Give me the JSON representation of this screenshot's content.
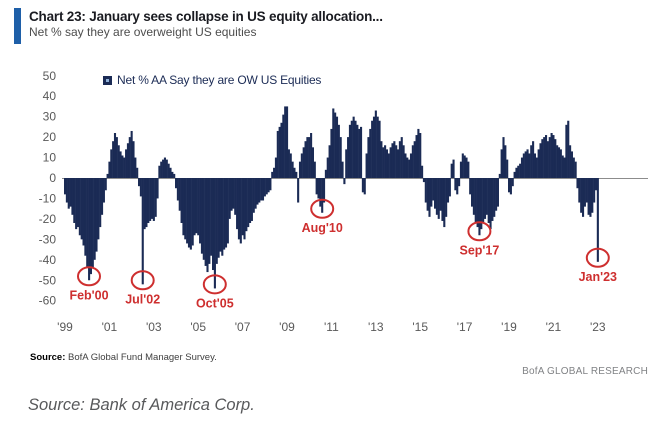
{
  "header": {
    "title": "Chart 23: January sees collapse in US equity allocation...",
    "subtitle": "Net % say they are overweight US equities"
  },
  "legend": {
    "label": "Net % AA Say they are OW US Equities"
  },
  "footer": {
    "source_label": "Source:",
    "source_text": " BofA Global Fund Manager Survey.",
    "brand": "BofA GLOBAL RESEARCH"
  },
  "caption": "Source: Bank of America Corp.",
  "colors": {
    "bar": "#1B2B55",
    "accent": "#1E5FA8",
    "axis_text": "#595959",
    "zero_line": "#8C8C8C",
    "annotation": "#CE2F2F"
  },
  "chart_data": {
    "type": "bar",
    "title": "Net % AA Say they are OW US Equities",
    "frequency": "monthly",
    "start_year": 1999,
    "end_label": "Jan'23",
    "ylim": [
      -60,
      50
    ],
    "grid": false,
    "yticks": [
      50,
      40,
      30,
      20,
      10,
      0,
      -10,
      -20,
      -30,
      -40,
      -50,
      -60
    ],
    "xtick_labels": [
      "'99",
      "'01",
      "'03",
      "'05",
      "'07",
      "'09",
      "'11",
      "'13",
      "'15",
      "'17",
      "'19",
      "'21",
      "'23"
    ],
    "values": [
      -8,
      -12,
      -15,
      -14,
      -18,
      -22,
      -25,
      -24,
      -28,
      -30,
      -33,
      -38,
      -44,
      -50,
      -47,
      -44,
      -40,
      -36,
      -30,
      -24,
      -18,
      -12,
      -6,
      2,
      8,
      14,
      18,
      22,
      20,
      16,
      13,
      11,
      10,
      14,
      17,
      20,
      23,
      18,
      10,
      5,
      -4,
      -9,
      -52,
      -25,
      -24,
      -22,
      -21,
      -20,
      -21,
      -19,
      -10,
      6,
      8,
      9,
      10,
      9,
      7,
      5,
      3,
      2,
      -5,
      -11,
      -16,
      -22,
      -28,
      -30,
      -32,
      -34,
      -35,
      -33,
      -28,
      -27,
      -28,
      -32,
      -37,
      -40,
      -43,
      -46,
      -42,
      -38,
      -45,
      -54,
      -42,
      -39,
      -36,
      -38,
      -35,
      -34,
      -32,
      -20,
      -16,
      -15,
      -18,
      -25,
      -30,
      -32,
      -28,
      -30,
      -26,
      -24,
      -22,
      -21,
      -17,
      -15,
      -13,
      -12,
      -11,
      -11,
      -9,
      -8,
      -7,
      -6,
      3,
      5,
      10,
      23,
      25,
      27,
      31,
      35,
      35,
      14,
      12,
      8,
      5,
      3,
      -12,
      8,
      12,
      15,
      18,
      20,
      20,
      22,
      15,
      8,
      -8,
      -10,
      -14,
      -17,
      -12,
      4,
      10,
      16,
      24,
      34,
      32,
      30,
      26,
      20,
      8,
      -3,
      14,
      20,
      26,
      28,
      30,
      28,
      26,
      24,
      25,
      -7,
      -8,
      12,
      20,
      24,
      28,
      30,
      33,
      30,
      28,
      18,
      15,
      16,
      14,
      12,
      15,
      17,
      18,
      16,
      14,
      18,
      20,
      16,
      12,
      10,
      9,
      12,
      16,
      18,
      21,
      24,
      22,
      6,
      -2,
      -12,
      -16,
      -19,
      -14,
      -11,
      -15,
      -18,
      -20,
      -16,
      -21,
      -24,
      -19,
      -12,
      -9,
      7,
      9,
      -6,
      -8,
      -4,
      8,
      12,
      11,
      10,
      8,
      -8,
      -14,
      -18,
      -22,
      -24,
      -28,
      -25,
      -22,
      -20,
      -18,
      -22,
      -25,
      -21,
      -19,
      -16,
      -14,
      2,
      14,
      20,
      16,
      9,
      -7,
      -8,
      -4,
      3,
      5,
      6,
      7,
      10,
      12,
      13,
      14,
      12,
      16,
      18,
      12,
      10,
      14,
      17,
      19,
      20,
      21,
      18,
      20,
      22,
      21,
      19,
      16,
      15,
      14,
      11,
      10,
      26,
      28,
      16,
      13,
      10,
      8,
      -5,
      -12,
      -17,
      -19,
      -14,
      -12,
      -18,
      -19,
      -17,
      -12,
      -6,
      -41
    ],
    "annotations": [
      {
        "label": "Feb'00",
        "index": 13,
        "value": -50
      },
      {
        "label": "Jul'02",
        "index": 42,
        "value": -52
      },
      {
        "label": "Oct'05",
        "index": 81,
        "value": -54
      },
      {
        "label": "Aug'10",
        "index": 139,
        "value": -17
      },
      {
        "label": "Sep'17",
        "index": 224,
        "value": -28
      },
      {
        "label": "Jan'23",
        "index": 288,
        "value": -41
      }
    ]
  }
}
